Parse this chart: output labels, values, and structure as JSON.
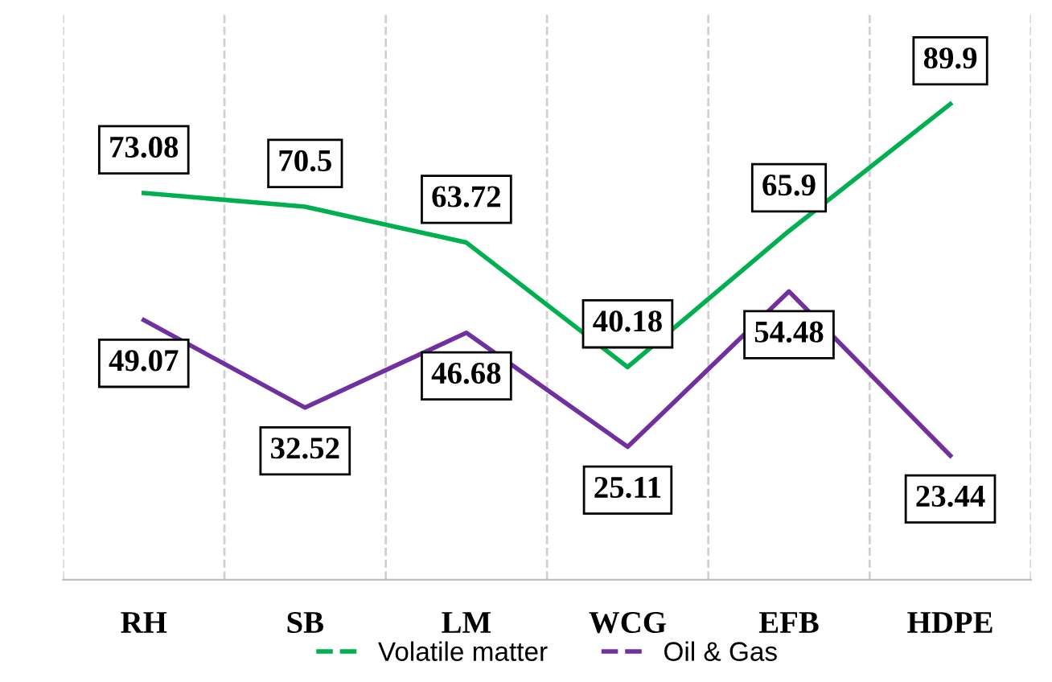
{
  "chart_data": {
    "type": "line",
    "categories": [
      "RH",
      "SB",
      "LM",
      "WCG",
      "EFB",
      "HDPE"
    ],
    "series": [
      {
        "name": "Volatile matter",
        "color": "#00b050",
        "values": [
          73.08,
          70.5,
          63.72,
          40.18,
          65.9,
          89.9
        ]
      },
      {
        "name": "Oil & Gas",
        "color": "#7030a0",
        "values": [
          49.07,
          32.52,
          46.68,
          25.11,
          54.48,
          23.44
        ]
      }
    ],
    "data_labels": true,
    "grid": "x",
    "legend": "bottom",
    "line_style": "solid"
  }
}
